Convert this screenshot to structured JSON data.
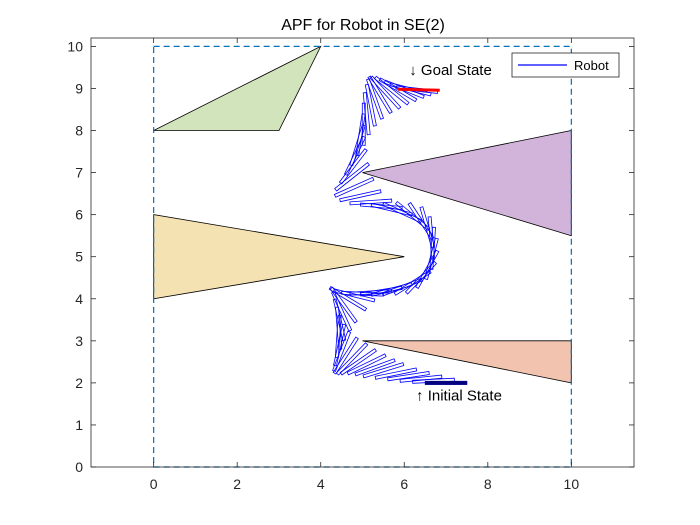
{
  "chart_data": {
    "type": "line",
    "title": "APF for Robot in SE(2)",
    "xlabel": "",
    "ylabel": "",
    "xlim": [
      -1.5,
      11.5
    ],
    "ylim": [
      0,
      10.2
    ],
    "xticks": [
      0,
      2,
      4,
      6,
      8,
      10
    ],
    "yticks": [
      0,
      1,
      2,
      3,
      4,
      5,
      6,
      7,
      8,
      9,
      10
    ],
    "grid": false,
    "legend": {
      "location": "top-right",
      "entries": [
        "Robot"
      ]
    },
    "colors": {
      "robot": "#0000ff",
      "start": "#000080",
      "goal": "#ff0000",
      "boundary": "#0072bd",
      "axes": "#262626"
    },
    "workspace": {
      "x": [
        0,
        10
      ],
      "y": [
        0,
        10
      ],
      "style": "dashed"
    },
    "obstacles": [
      {
        "vertices": [
          [
            0,
            8
          ],
          [
            3,
            8
          ],
          [
            4,
            10
          ]
        ],
        "color": "#d1e4bc"
      },
      {
        "vertices": [
          [
            5,
            7
          ],
          [
            10,
            8
          ],
          [
            10,
            5.5
          ]
        ],
        "color": "#d2b3d9"
      },
      {
        "vertices": [
          [
            0,
            6
          ],
          [
            0,
            4
          ],
          [
            6,
            5
          ]
        ],
        "color": "#f5e2b2"
      },
      {
        "vertices": [
          [
            5,
            3
          ],
          [
            10,
            3
          ],
          [
            10,
            2
          ]
        ],
        "color": "#f2c4b0"
      }
    ],
    "robot_length": 1.0,
    "trajectory": [
      [
        7.0,
        2.0,
        0.0
      ],
      [
        6.7,
        2.05,
        0.05
      ],
      [
        6.4,
        2.1,
        0.1
      ],
      [
        6.1,
        2.16,
        0.15
      ],
      [
        5.8,
        2.22,
        0.2
      ],
      [
        5.5,
        2.3,
        0.3
      ],
      [
        5.3,
        2.37,
        0.35
      ],
      [
        5.1,
        2.44,
        0.45
      ],
      [
        4.9,
        2.5,
        0.6
      ],
      [
        4.75,
        2.57,
        0.8
      ],
      [
        4.6,
        2.65,
        1.0
      ],
      [
        4.5,
        2.75,
        1.2
      ],
      [
        4.45,
        2.9,
        1.35
      ],
      [
        4.42,
        3.1,
        1.5
      ],
      [
        4.43,
        3.3,
        1.65
      ],
      [
        4.45,
        3.5,
        1.8
      ],
      [
        4.5,
        3.7,
        2.0
      ],
      [
        4.55,
        3.85,
        2.2
      ],
      [
        4.65,
        4.0,
        2.6
      ],
      [
        4.8,
        4.08,
        2.9
      ],
      [
        5.0,
        4.12,
        3.1
      ],
      [
        5.2,
        4.15,
        3.2
      ],
      [
        5.45,
        4.18,
        3.3
      ],
      [
        5.7,
        4.22,
        3.4
      ],
      [
        5.95,
        4.28,
        3.5
      ],
      [
        6.2,
        4.38,
        3.7
      ],
      [
        6.4,
        4.5,
        3.95
      ],
      [
        6.55,
        4.7,
        4.2
      ],
      [
        6.65,
        4.95,
        4.45
      ],
      [
        6.68,
        5.2,
        4.65
      ],
      [
        6.65,
        5.45,
        4.8
      ],
      [
        6.55,
        5.7,
        5.0
      ],
      [
        6.4,
        5.85,
        5.3
      ],
      [
        6.2,
        5.97,
        5.6
      ],
      [
        5.95,
        6.05,
        5.85
      ],
      [
        5.7,
        6.12,
        6.05
      ],
      [
        5.45,
        6.2,
        6.2
      ],
      [
        5.2,
        6.3,
        6.35
      ],
      [
        4.95,
        6.45,
        6.5
      ],
      [
        4.8,
        6.65,
        6.7
      ],
      [
        4.75,
        6.9,
        6.95
      ],
      [
        4.78,
        7.15,
        7.2
      ],
      [
        4.82,
        7.4,
        7.4
      ],
      [
        4.88,
        7.65,
        7.55
      ],
      [
        4.95,
        7.9,
        7.7
      ],
      [
        5.03,
        8.15,
        7.85
      ],
      [
        5.1,
        8.4,
        7.95
      ],
      [
        5.2,
        8.6,
        8.05
      ],
      [
        5.3,
        8.75,
        8.2
      ],
      [
        5.42,
        8.85,
        8.4
      ],
      [
        5.55,
        8.9,
        8.6
      ],
      [
        5.7,
        8.95,
        8.75
      ],
      [
        5.85,
        8.97,
        8.9
      ],
      [
        6.0,
        8.98,
        9.05
      ],
      [
        6.15,
        8.98,
        9.18
      ],
      [
        6.3,
        8.97,
        9.32
      ]
    ],
    "initial_state": [
      7.0,
      2.0,
      0.0
    ],
    "goal_state": [
      6.35,
      8.97,
      9.4
    ],
    "annotations": [
      {
        "text": "↑ Initial State",
        "x": 7.0,
        "y": 1.7,
        "position": "below-right"
      },
      {
        "text": "↓ Goal State",
        "x": 6.0,
        "y": 9.2,
        "position": "above-right"
      }
    ]
  }
}
